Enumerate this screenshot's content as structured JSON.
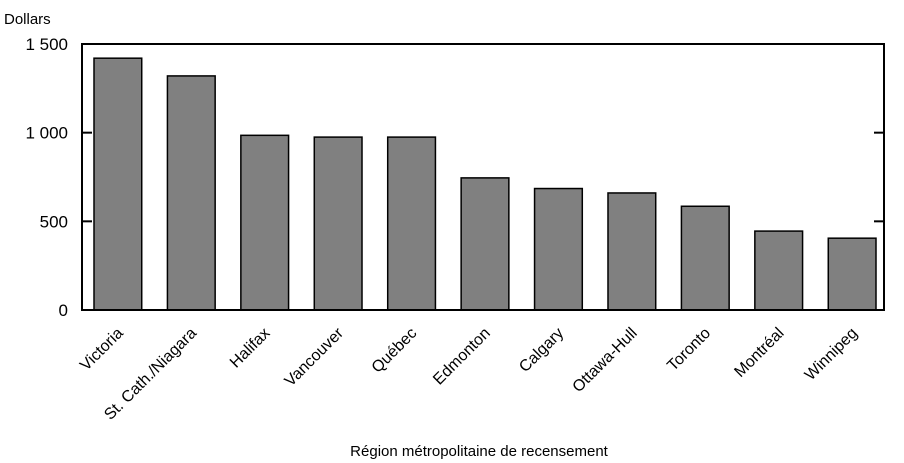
{
  "chart_data": {
    "type": "bar",
    "ylabel": "Dollars",
    "xlabel": "Région métropolitaine de recensement",
    "ylim": [
      0,
      1500
    ],
    "yticks": [
      0,
      500,
      1000,
      1500
    ],
    "ytick_labels": [
      "0",
      "500",
      "1 000",
      "1 500"
    ],
    "grid": false,
    "bar_color": "#808080",
    "categories": [
      "Victoria",
      "St. Cath./Niagara",
      "Halifax",
      "Vancouver",
      "Québec",
      "Edmonton",
      "Calgary",
      "Ottawa-Hull",
      "Toronto",
      "Montréal",
      "Winnipeg"
    ],
    "values": [
      1420,
      1320,
      985,
      975,
      975,
      745,
      685,
      660,
      585,
      445,
      405
    ]
  }
}
